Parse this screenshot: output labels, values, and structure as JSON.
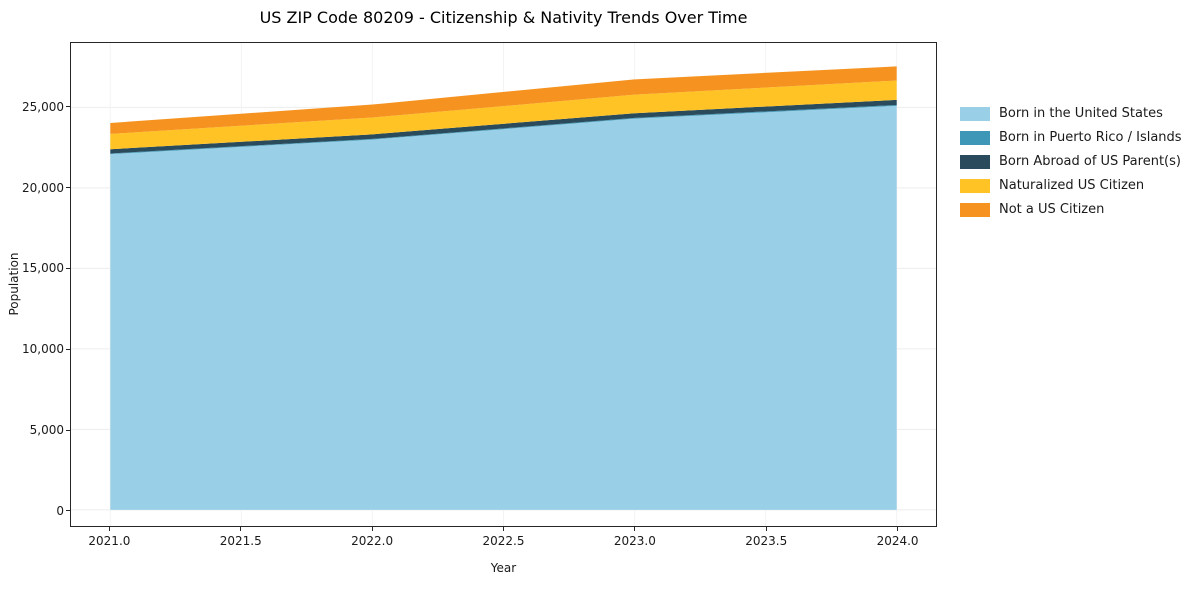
{
  "title": "US ZIP Code 80209 - Citizenship & Nativity Trends Over Time",
  "chart_data": {
    "type": "area",
    "stacked": true,
    "title": "US ZIP Code 80209 - Citizenship & Nativity Trends Over Time",
    "xlabel": "Year",
    "ylabel": "Population",
    "x": [
      2021,
      2022,
      2023,
      2024
    ],
    "series": [
      {
        "name": "Born in the United States",
        "color": "#99d0e7",
        "values": [
          22100,
          23000,
          24300,
          25100
        ]
      },
      {
        "name": "Born in Puerto Rico / Islands",
        "color": "#3f97b7",
        "values": [
          40,
          45,
          50,
          55
        ]
      },
      {
        "name": "Born Abroad of US Parent(s)",
        "color": "#2a4b5c",
        "values": [
          260,
          280,
          290,
          310
        ]
      },
      {
        "name": "Naturalized US Citizen",
        "color": "#ffc325",
        "values": [
          950,
          1050,
          1150,
          1200
        ]
      },
      {
        "name": "Not a US Citizen",
        "color": "#f69320",
        "values": [
          680,
          800,
          950,
          880
        ]
      }
    ],
    "xlim": [
      2020.85,
      2024.15
    ],
    "ylim": [
      -1000,
      29000
    ],
    "xticks": {
      "values": [
        2021.0,
        2021.5,
        2022.0,
        2022.5,
        2023.0,
        2023.5,
        2024.0
      ],
      "labels": [
        "2021.0",
        "2021.5",
        "2022.0",
        "2022.5",
        "2023.0",
        "2023.5",
        "2024.0"
      ]
    },
    "yticks": {
      "values": [
        0,
        5000,
        10000,
        15000,
        20000,
        25000
      ],
      "labels": [
        "0",
        "5,000",
        "10,000",
        "15,000",
        "20,000",
        "25,000"
      ]
    },
    "grid": true,
    "legend_position": "right"
  }
}
